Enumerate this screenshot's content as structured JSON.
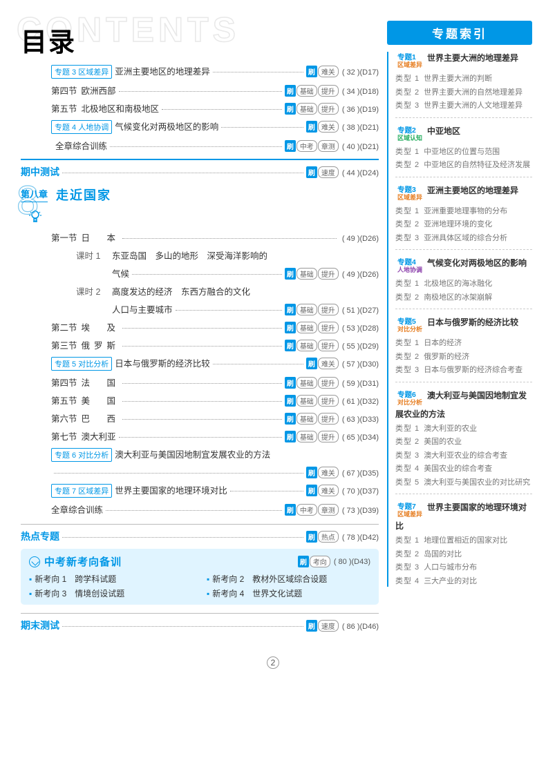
{
  "header": {
    "bg": "CONTENTS",
    "title": "目录",
    "sidebar": "专题索引"
  },
  "toc": [
    {
      "type": "line",
      "tag": "专题 3 区域差异",
      "title": "亚洲主要地区的地理差异",
      "badges": [
        "难关"
      ],
      "pg": "( 32 )(D17)"
    },
    {
      "type": "line",
      "label": "第四节",
      "title": "欧洲西部",
      "badges": [
        "基础",
        "提升"
      ],
      "pg": "( 34 )(D18)"
    },
    {
      "type": "line",
      "label": "第五节",
      "title": "北极地区和南极地区",
      "badges": [
        "基础",
        "提升"
      ],
      "pg": "( 36 )(D19)"
    },
    {
      "type": "line",
      "tag": "专题 4 人地协调",
      "title": "气候变化对两极地区的影响",
      "badges": [
        "难关"
      ],
      "pg": "( 38 )(D21)"
    },
    {
      "type": "line",
      "label": "",
      "title": "全章综合训练",
      "badges": [
        "中考",
        "章测"
      ],
      "pg": "( 40 )(D21)"
    }
  ],
  "midtest": {
    "label": "期中测试",
    "badges": [
      "速度"
    ],
    "pg": "( 44 )(D24)"
  },
  "chapter": {
    "num": "8",
    "label": "第八章",
    "title": "走近国家"
  },
  "ch8": [
    {
      "label": "第一节",
      "title": "日　本",
      "pg": "( 49 )(D26)"
    },
    {
      "sub": "课时 1",
      "title": "东亚岛国　多山的地形　深受海洋影响的"
    },
    {
      "sub": "",
      "title": "气候",
      "badges": [
        "基础",
        "提升"
      ],
      "pg": "( 49 )(D26)"
    },
    {
      "sub": "课时 2",
      "title": "高度发达的经济　东西方融合的文化"
    },
    {
      "sub": "",
      "title": "人口与主要城市",
      "badges": [
        "基础",
        "提升"
      ],
      "pg": "( 51 )(D27)"
    },
    {
      "label": "第二节",
      "title": "埃　及",
      "badges": [
        "基础",
        "提升"
      ],
      "pg": "( 53 )(D28)"
    },
    {
      "label": "第三节",
      "title": "俄罗斯",
      "badges": [
        "基础",
        "提升"
      ],
      "pg": "( 55 )(D29)"
    },
    {
      "tag": "专题 5 对比分析",
      "title": "日本与俄罗斯的经济比较",
      "badges": [
        "难关"
      ],
      "pg": "( 57 )(D30)"
    },
    {
      "label": "第四节",
      "title": "法　国",
      "badges": [
        "基础",
        "提升"
      ],
      "pg": "( 59 )(D31)"
    },
    {
      "label": "第五节",
      "title": "美　国",
      "badges": [
        "基础",
        "提升"
      ],
      "pg": "( 61 )(D32)"
    },
    {
      "label": "第六节",
      "title": "巴　西",
      "badges": [
        "基础",
        "提升"
      ],
      "pg": "( 63 )(D33)"
    },
    {
      "label": "第七节",
      "title": "澳大利亚",
      "badges": [
        "基础",
        "提升"
      ],
      "pg": "( 65 )(D34)"
    },
    {
      "tag": "专题 6 对比分析",
      "title": "澳大利亚与美国因地制宜发展农业的方法"
    },
    {
      "title": "",
      "badges": [
        "难关"
      ],
      "pg": "( 67 )(D35)"
    },
    {
      "tag": "专题 7 区域差异",
      "title": "世界主要国家的地理环境对比",
      "badges": [
        "难关"
      ],
      "pg": "( 70 )(D37)"
    },
    {
      "title": "全章综合训练",
      "badges": [
        "中考",
        "章测"
      ],
      "pg": "( 73 )(D39)"
    }
  ],
  "hot": {
    "label": "热点专题",
    "badges": [
      "热点"
    ],
    "pg": "( 78 )(D42)"
  },
  "exam": {
    "title": "中考新考向备训",
    "badges": [
      "考向"
    ],
    "pg": "( 80 )(D43)",
    "items": [
      "新考向 1　跨学科试题",
      "新考向 2　教材外区域综合设题",
      "新考向 3　情境创设试题",
      "新考向 4　世界文化试题"
    ]
  },
  "final": {
    "label": "期末测试",
    "badges": [
      "速度"
    ],
    "pg": "( 86 )(D46)"
  },
  "sidebar": [
    {
      "tag1": "专题1",
      "tag2": "区域差异",
      "cls": "",
      "title": "世界主要大洲的地理差异",
      "items": [
        [
          "类型 1",
          "世界主要大洲的判断"
        ],
        [
          "类型 2",
          "世界主要大洲的自然地理差异"
        ],
        [
          "类型 3",
          "世界主要大洲的人文地理差异"
        ]
      ]
    },
    {
      "tag1": "专题2",
      "tag2": "区域认知",
      "cls": "green",
      "title": "中亚地区",
      "items": [
        [
          "类型 1",
          "中亚地区的位置与范围"
        ],
        [
          "类型 2",
          "中亚地区的自然特征及经济发展"
        ]
      ]
    },
    {
      "tag1": "专题3",
      "tag2": "区域差异",
      "cls": "",
      "title": "亚洲主要地区的地理差异",
      "items": [
        [
          "类型 1",
          "亚洲重要地理事物的分布"
        ],
        [
          "类型 2",
          "亚洲地理环境的变化"
        ],
        [
          "类型 3",
          "亚洲具体区域的综合分析"
        ]
      ]
    },
    {
      "tag1": "专题4",
      "tag2": "人地协调",
      "cls": "purple",
      "title": "气候变化对两极地区的影响",
      "items": [
        [
          "类型 1",
          "北极地区的海冰融化"
        ],
        [
          "类型 2",
          "南极地区的冰架崩解"
        ]
      ]
    },
    {
      "tag1": "专题5",
      "tag2": "对比分析",
      "cls": "",
      "title": "日本与俄罗斯的经济比较",
      "items": [
        [
          "类型 1",
          "日本的经济"
        ],
        [
          "类型 2",
          "俄罗斯的经济"
        ],
        [
          "类型 3",
          "日本与俄罗斯的经济综合考查"
        ]
      ]
    },
    {
      "tag1": "专题6",
      "tag2": "对比分析",
      "cls": "",
      "title": "澳大利亚与美国因地制宜发展农业的方法",
      "items": [
        [
          "类型 1",
          "澳大利亚的农业"
        ],
        [
          "类型 2",
          "美国的农业"
        ],
        [
          "类型 3",
          "澳大利亚农业的综合考查"
        ],
        [
          "类型 4",
          "美国农业的综合考查"
        ],
        [
          "类型 5",
          "澳大利亚与美国农业的对比研究"
        ]
      ]
    },
    {
      "tag1": "专题7",
      "tag2": "区域差异",
      "cls": "",
      "title": "世界主要国家的地理环境对比",
      "items": [
        [
          "类型 1",
          "地理位置相近的国家对比"
        ],
        [
          "类型 2",
          "岛国的对比"
        ],
        [
          "类型 3",
          "人口与城市分布"
        ],
        [
          "类型 4",
          "三大产业的对比"
        ]
      ]
    }
  ],
  "pagenum": "2"
}
